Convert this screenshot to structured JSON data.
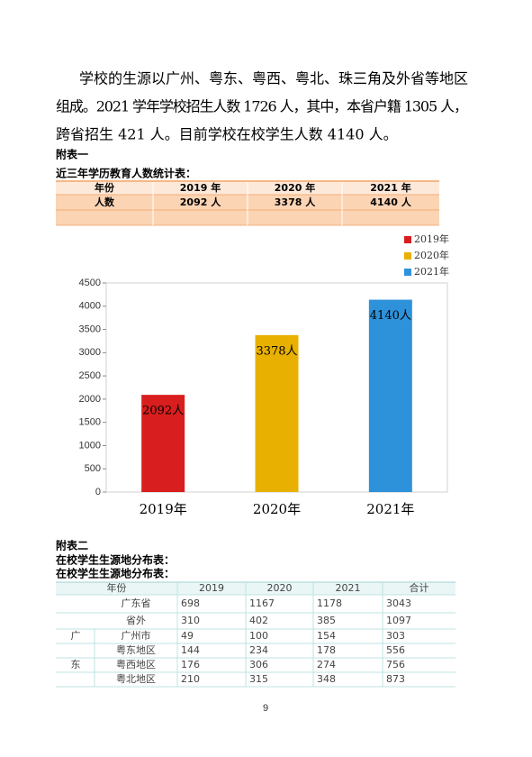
{
  "paragraph": [
    "学校的生源以广州、粤东、粤西、粤北、珠三角及外省等地区",
    "组成。2021 学年学校招生人数 1726 人，其中，本省户籍 1305 人，",
    "跨省招生 421 人。目前学校在校学生人数 4140 人。"
  ],
  "appendix1": {
    "label": "附表一",
    "caption": "近三年学历教育人数统计表：",
    "header": [
      "年份",
      "2019 年",
      "2020 年",
      "2021 年"
    ],
    "row": [
      "人数",
      "2092 人",
      "3378 人",
      "4140 人"
    ]
  },
  "chart_data": {
    "type": "bar",
    "categories": [
      "2019年",
      "2020年",
      "2021年"
    ],
    "values": [
      2092,
      3378,
      4140
    ],
    "value_labels": [
      "2092人",
      "3378人",
      "4140人"
    ],
    "colors": [
      "#d81e1e",
      "#e8b000",
      "#2e92da"
    ],
    "ylim": [
      0,
      4500
    ],
    "yticks": [
      0,
      500,
      1000,
      1500,
      2000,
      2500,
      3000,
      3500,
      4000,
      4500
    ],
    "legend": "top-right"
  },
  "appendix2": {
    "label": "附表二",
    "captions": [
      "在校学生生源地分布表：",
      "在校学生生源地分布表："
    ],
    "header": [
      "年份",
      "2019",
      "2020",
      "2021",
      "合计"
    ],
    "rows": [
      {
        "name": "广东省",
        "values": [
          698,
          1167,
          1178,
          3043
        ]
      },
      {
        "name": "省外",
        "values": [
          310,
          402,
          385,
          1097
        ]
      }
    ],
    "group": [
      "广",
      "东"
    ],
    "subrows": [
      {
        "name": "广州市",
        "values": [
          49,
          100,
          154,
          303
        ]
      },
      {
        "name": "粤东地区",
        "values": [
          144,
          234,
          178,
          556
        ]
      },
      {
        "name": "粤西地区",
        "values": [
          176,
          306,
          274,
          756
        ]
      },
      {
        "name": "粤北地区",
        "values": [
          210,
          315,
          348,
          873
        ]
      }
    ]
  },
  "page_number": "9"
}
